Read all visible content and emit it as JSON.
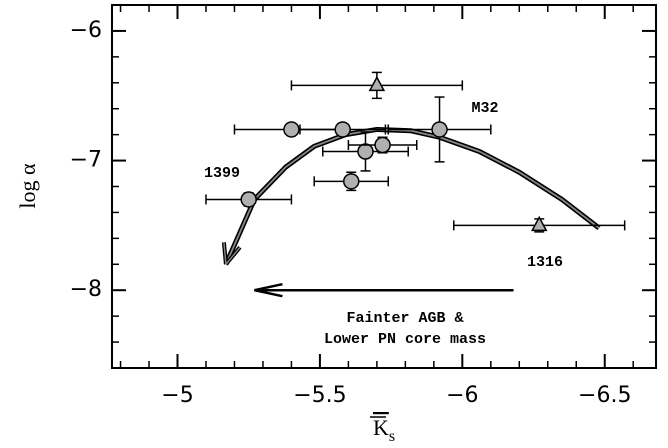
{
  "chart_data": {
    "type": "scatter",
    "x_label": {
      "main": "K",
      "sub": "s"
    },
    "y_label": "log α",
    "xlim": [
      -4.77,
      -6.68
    ],
    "ylim": [
      -8.6,
      -5.8
    ],
    "xticks": [
      {
        "value": -5,
        "label": "−5"
      },
      {
        "value": -5.5,
        "label": "−5.5"
      },
      {
        "value": -6,
        "label": "−6"
      },
      {
        "value": -6.5,
        "label": "−6.5"
      }
    ],
    "yticks": [
      {
        "value": -6,
        "label": "−6"
      },
      {
        "value": -7,
        "label": "−7"
      },
      {
        "value": -8,
        "label": "−8"
      }
    ],
    "xminorticks": [
      -4.8,
      -4.9,
      -5.1,
      -5.2,
      -5.3,
      -5.4,
      -5.6,
      -5.7,
      -5.8,
      -5.9,
      -6.1,
      -6.2,
      -6.3,
      -6.4,
      -6.6
    ],
    "yminorticks": [
      -5.8,
      -6.2,
      -6.4,
      -6.6,
      -6.8,
      -7.2,
      -7.4,
      -7.6,
      -7.8,
      -8.2,
      -8.4
    ],
    "series": [
      {
        "marker": "circle",
        "color": "#b0b0b0",
        "x": [
          -5.25,
          -5.4,
          -5.58,
          -5.92,
          -5.61,
          -5.66,
          -5.72
        ],
        "values": [
          -7.3,
          -6.76,
          -6.76,
          -6.76,
          -7.16,
          -6.93,
          -6.88
        ],
        "xerr": [
          0.15,
          0.2,
          0.15,
          0.18,
          0.13,
          0.15,
          0.12
        ],
        "yerr": [
          0.05,
          0.03,
          0.03,
          0.25,
          0.07,
          0.15,
          0.06
        ]
      },
      {
        "marker": "triangle",
        "color": "#b0b0b0",
        "x": [
          -5.7,
          -6.27
        ],
        "values": [
          -6.42,
          -7.5
        ],
        "xerr": [
          0.3,
          0.3
        ],
        "yerr": [
          0.1,
          0.05
        ]
      }
    ],
    "curve": {
      "x": [
        -5.17,
        -5.27,
        -5.38,
        -5.48,
        -5.59,
        -5.7,
        -5.82,
        -5.92,
        -6.06,
        -6.2,
        -6.35,
        -6.48
      ],
      "values": [
        -7.8,
        -7.3,
        -7.05,
        -6.89,
        -6.8,
        -6.76,
        -6.77,
        -6.82,
        -6.93,
        -7.09,
        -7.3,
        -7.52
      ]
    },
    "arrow": {
      "x": [
        -6.18,
        -5.27
      ],
      "values": [
        -8,
        -8
      ]
    },
    "annotations": [
      "1399",
      "M32",
      "1316",
      "Fainter AGB &",
      "Lower PN core mass"
    ]
  }
}
